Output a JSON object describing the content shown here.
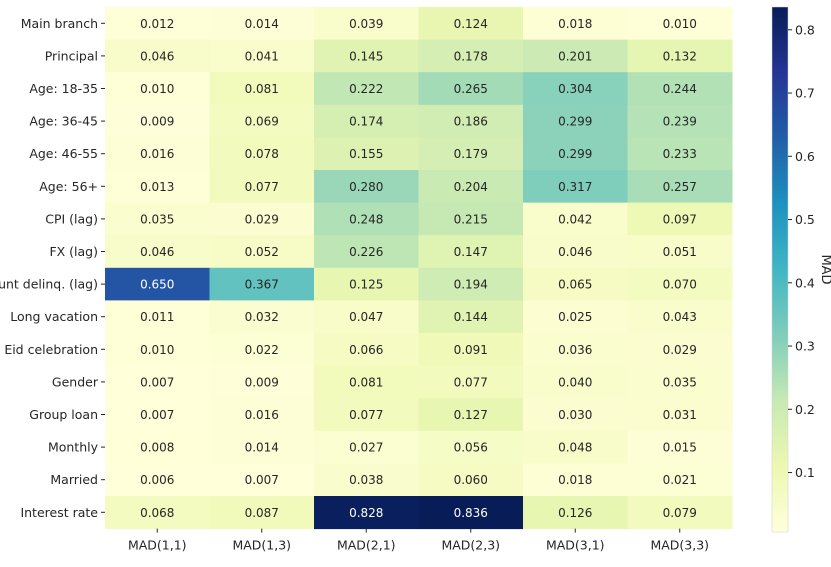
{
  "chart_data": {
    "type": "heatmap",
    "title": "",
    "xlabel": "",
    "ylabel": "",
    "columns": [
      "MAD(1,1)",
      "MAD(1,3)",
      "MAD(2,1)",
      "MAD(2,3)",
      "MAD(3,1)",
      "MAD(3,3)"
    ],
    "rows": [
      "Main branch",
      "Principal",
      "Age: 18-35",
      "Age: 36-45",
      "Age: 46-55",
      "Age: 56+",
      "CPI (lag)",
      "FX (lag)",
      "Count delinq. (lag)",
      "Long vacation",
      "Eid celebration",
      "Gender",
      "Group loan",
      "Monthly",
      "Married",
      "Interest rate"
    ],
    "values": [
      [
        "0.012",
        "0.014",
        "0.039",
        "0.124",
        "0.018",
        "0.010"
      ],
      [
        "0.046",
        "0.041",
        "0.145",
        "0.178",
        "0.201",
        "0.132"
      ],
      [
        "0.010",
        "0.081",
        "0.222",
        "0.265",
        "0.304",
        "0.244"
      ],
      [
        "0.009",
        "0.069",
        "0.174",
        "0.186",
        "0.299",
        "0.239"
      ],
      [
        "0.016",
        "0.078",
        "0.155",
        "0.179",
        "0.299",
        "0.233"
      ],
      [
        "0.013",
        "0.077",
        "0.280",
        "0.204",
        "0.317",
        "0.257"
      ],
      [
        "0.035",
        "0.029",
        "0.248",
        "0.215",
        "0.042",
        "0.097"
      ],
      [
        "0.046",
        "0.052",
        "0.226",
        "0.147",
        "0.046",
        "0.051"
      ],
      [
        "0.650",
        "0.367",
        "0.125",
        "0.194",
        "0.065",
        "0.070"
      ],
      [
        "0.011",
        "0.032",
        "0.047",
        "0.144",
        "0.025",
        "0.043"
      ],
      [
        "0.010",
        "0.022",
        "0.066",
        "0.091",
        "0.036",
        "0.029"
      ],
      [
        "0.007",
        "0.009",
        "0.081",
        "0.077",
        "0.040",
        "0.035"
      ],
      [
        "0.007",
        "0.016",
        "0.077",
        "0.127",
        "0.030",
        "0.031"
      ],
      [
        "0.008",
        "0.014",
        "0.027",
        "0.056",
        "0.048",
        "0.015"
      ],
      [
        "0.006",
        "0.007",
        "0.038",
        "0.060",
        "0.018",
        "0.021"
      ],
      [
        "0.068",
        "0.087",
        "0.828",
        "0.836",
        "0.126",
        "0.079"
      ]
    ],
    "colorbar": {
      "label": "MAD",
      "min": 0.006,
      "max": 0.836,
      "ticks": [
        {
          "value": 0.1,
          "label": "0.1"
        },
        {
          "value": 0.2,
          "label": "0.2"
        },
        {
          "value": 0.3,
          "label": "0.3"
        },
        {
          "value": 0.4,
          "label": "0.4"
        },
        {
          "value": 0.5,
          "label": "0.5"
        },
        {
          "value": 0.6,
          "label": "0.6"
        },
        {
          "value": 0.7,
          "label": "0.7"
        },
        {
          "value": 0.8,
          "label": "0.8"
        }
      ],
      "colormap": "YlGnBu",
      "colormap_stops": [
        "#ffffd9",
        "#edf8b1",
        "#c7e9b4",
        "#7fcdbb",
        "#41b6c4",
        "#1d91c0",
        "#225ea8",
        "#253494",
        "#081d58"
      ]
    }
  }
}
